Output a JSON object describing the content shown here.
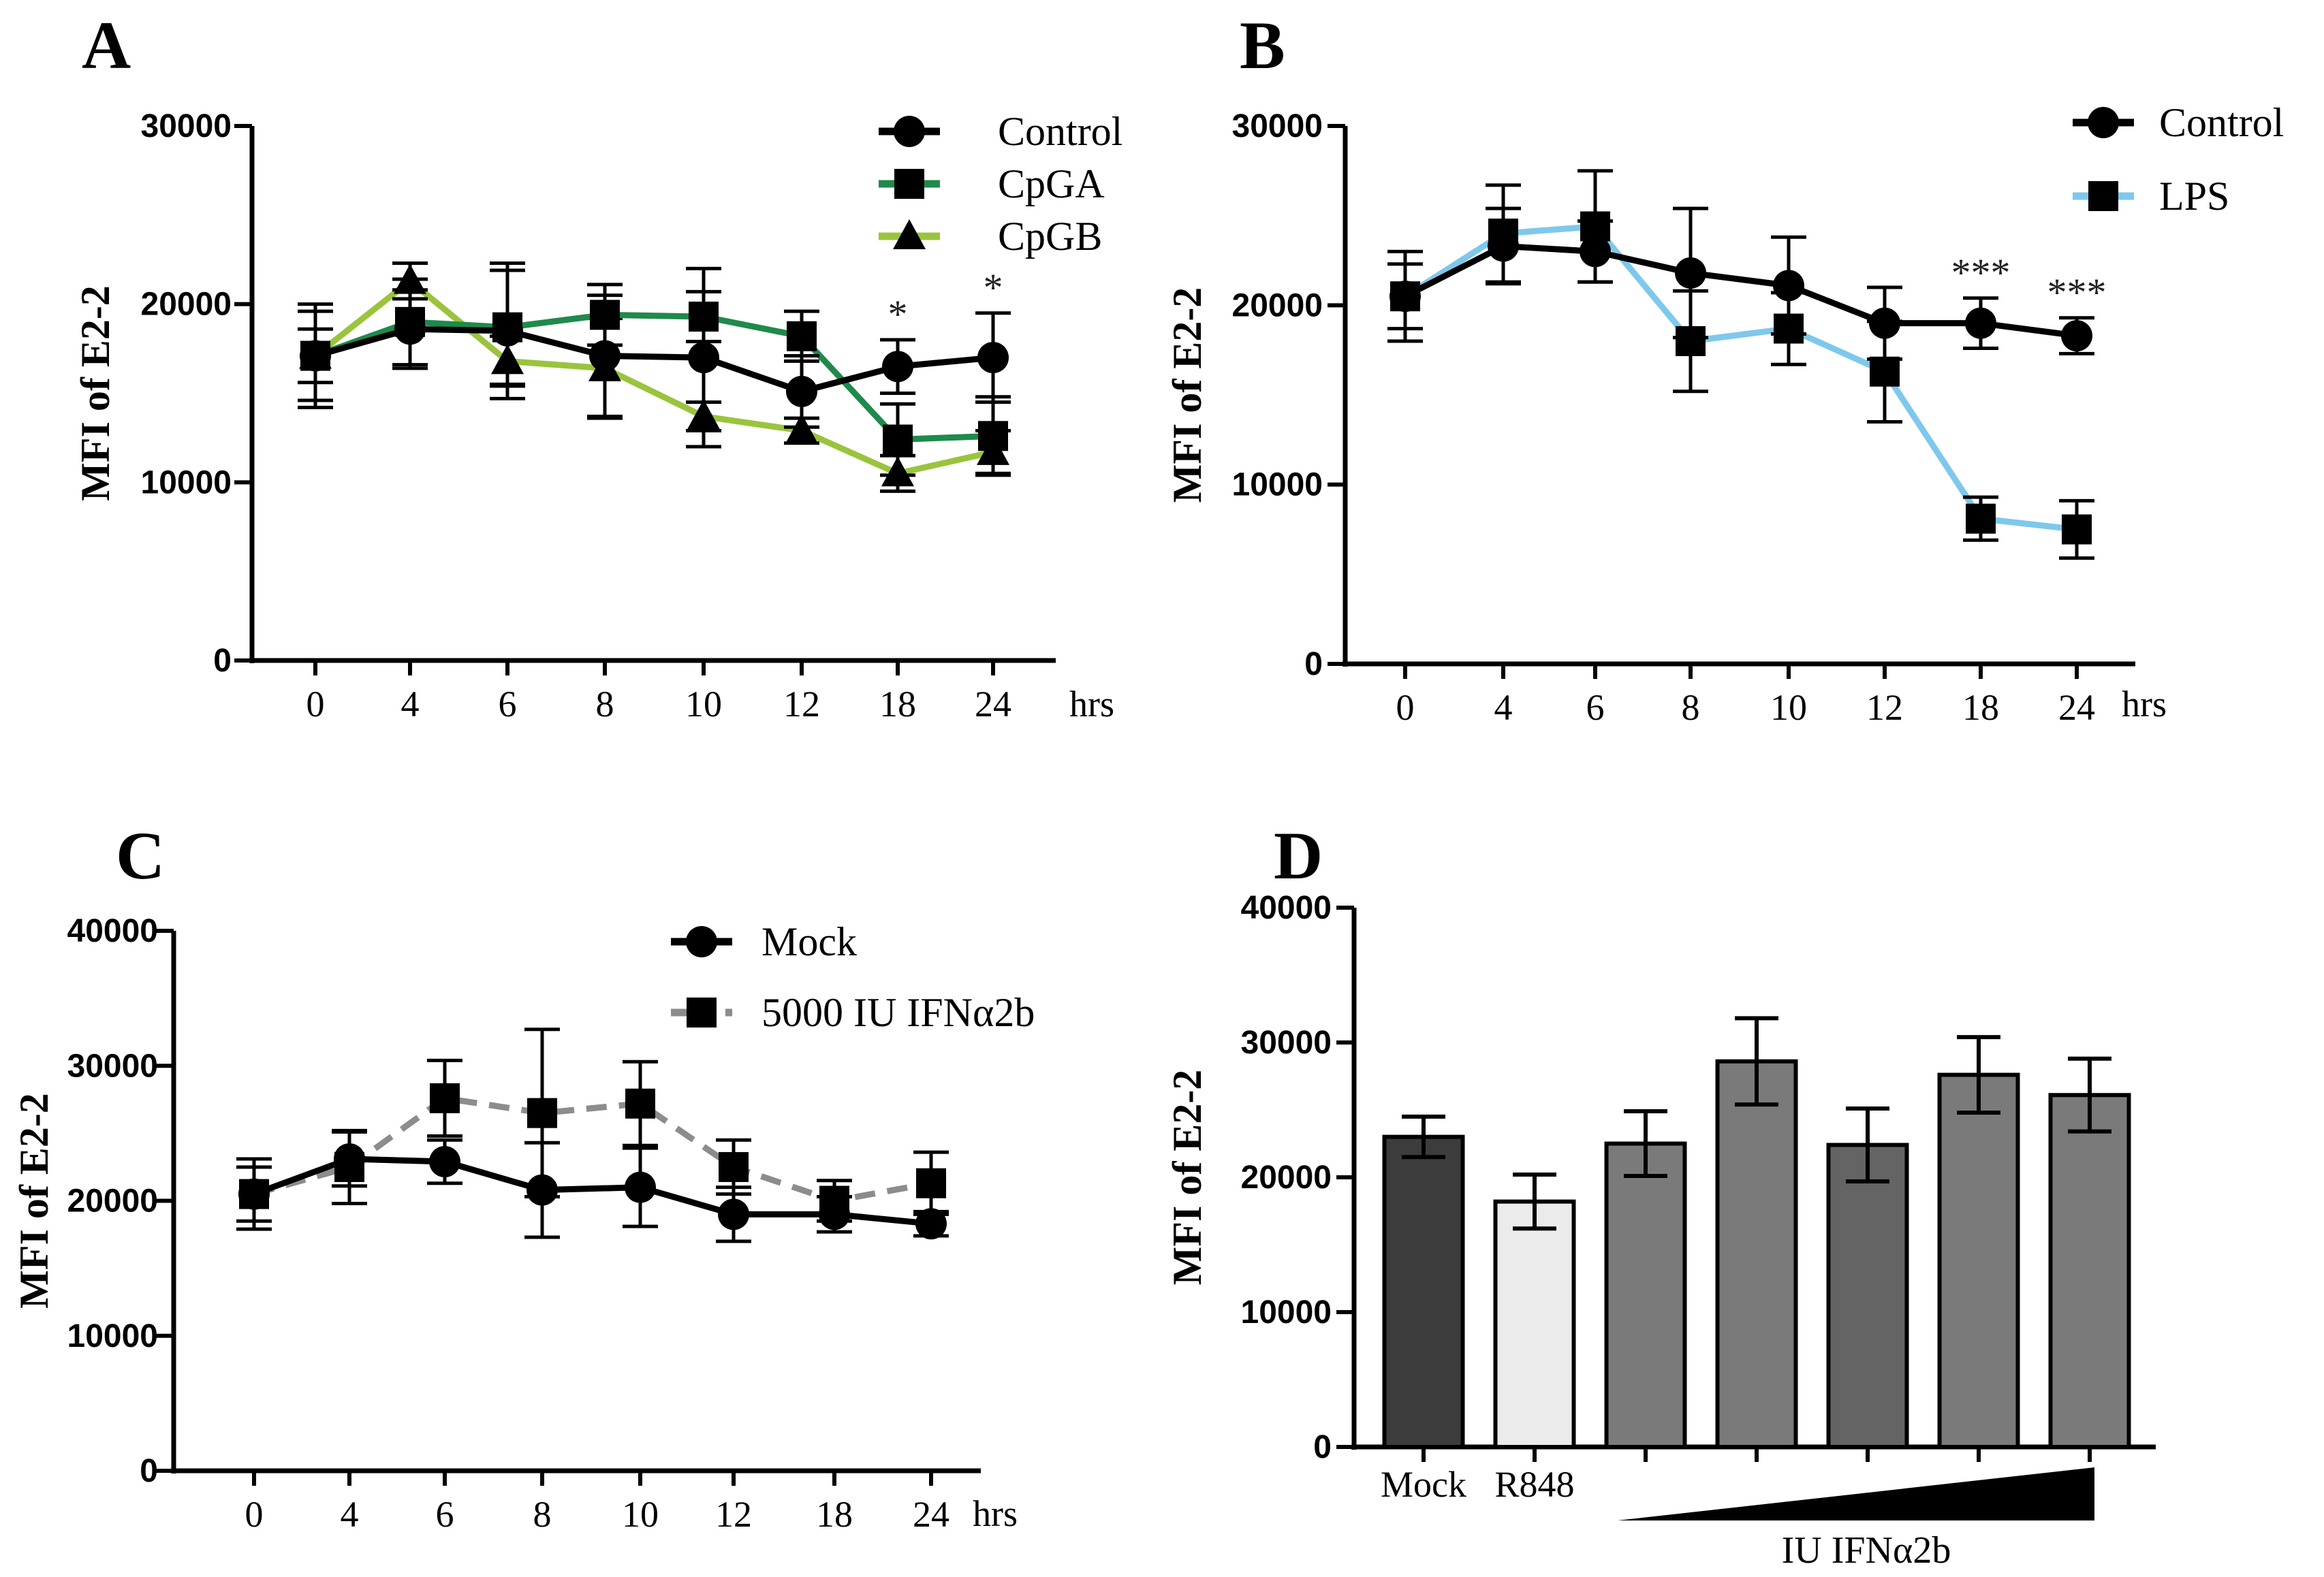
{
  "chart_data": [
    {
      "id": "A",
      "type": "line",
      "panel_label": "A",
      "ylabel": "MFI of E2-2",
      "x_unit": "hrs",
      "categories": [
        "0",
        "4",
        "6",
        "8",
        "10",
        "12",
        "18",
        "24"
      ],
      "ylim": [
        0,
        30000
      ],
      "yticks": [
        "0",
        "10000",
        "20000",
        "30000"
      ],
      "series": [
        {
          "name": "Control",
          "color": "#000000",
          "marker": "circle",
          "dash": false,
          "values": [
            17100,
            18600,
            18500,
            17100,
            17000,
            15100,
            16500,
            17000
          ],
          "errors": [
            2900,
            2200,
            3800,
            3400,
            5000,
            2000,
            1500,
            2500
          ]
        },
        {
          "name": "CpGA",
          "color": "#1f8a4b",
          "marker": "square",
          "dash": false,
          "values": [
            17100,
            19000,
            18700,
            19400,
            19300,
            18200,
            12400,
            12600
          ],
          "errors": [
            2500,
            2400,
            3200,
            1700,
            1400,
            1400,
            2000,
            2200
          ]
        },
        {
          "name": "CpGB",
          "color": "#9ac43d",
          "marker": "triangle",
          "dash": false,
          "values": [
            17100,
            21300,
            16800,
            16400,
            13700,
            12900,
            10500,
            11700
          ],
          "errors": [
            1500,
            1000,
            1400,
            2800,
            800,
            700,
            1000,
            1200
          ]
        }
      ],
      "annotations": [
        {
          "x": "18",
          "text": "*"
        },
        {
          "x": "24",
          "text": "*"
        }
      ]
    },
    {
      "id": "B",
      "type": "line",
      "panel_label": "B",
      "ylabel": "MFI of E2-2",
      "x_unit": "hrs",
      "categories": [
        "0",
        "4",
        "6",
        "8",
        "10",
        "12",
        "18",
        "24"
      ],
      "ylim": [
        0,
        30000
      ],
      "yticks": [
        "0",
        "10000",
        "20000",
        "30000"
      ],
      "series": [
        {
          "name": "Control",
          "color": "#000000",
          "marker": "circle",
          "dash": false,
          "values": [
            20500,
            23300,
            23000,
            21800,
            21100,
            19000,
            19000,
            18300
          ],
          "errors": [
            2500,
            2100,
            1700,
            3600,
            2700,
            2000,
            1400,
            1000
          ]
        },
        {
          "name": "LPS",
          "color": "#7ec8ec",
          "marker": "square",
          "dash": false,
          "values": [
            20500,
            24000,
            24400,
            18000,
            18700,
            16300,
            8100,
            7500
          ],
          "errors": [
            1800,
            2700,
            3100,
            2800,
            2000,
            2800,
            1200,
            1600
          ]
        }
      ],
      "annotations": [
        {
          "x": "18",
          "text": "***"
        },
        {
          "x": "24",
          "text": "***"
        }
      ]
    },
    {
      "id": "C",
      "type": "line",
      "panel_label": "C",
      "ylabel": "MFI of E2-2",
      "x_unit": "hrs",
      "categories": [
        "0",
        "4",
        "6",
        "8",
        "10",
        "12",
        "18",
        "24"
      ],
      "ylim": [
        0,
        40000
      ],
      "yticks": [
        "0",
        "10000",
        "20000",
        "30000",
        "40000"
      ],
      "series": [
        {
          "name": "Mock",
          "color": "#000000",
          "marker": "circle",
          "dash": false,
          "values": [
            20500,
            23100,
            22900,
            20800,
            21000,
            19000,
            19000,
            18300
          ],
          "errors": [
            2600,
            2000,
            1600,
            3500,
            2900,
            2000,
            1300,
            900
          ]
        },
        {
          "name": "5000 IU IFNα2b",
          "color": "#8c8c8c",
          "marker": "square",
          "dash": true,
          "values": [
            20500,
            22500,
            27600,
            26500,
            27200,
            22500,
            20000,
            21300
          ],
          "errors": [
            2000,
            2700,
            2800,
            6200,
            3100,
            2000,
            1500,
            2300
          ]
        }
      ],
      "annotations": []
    },
    {
      "id": "D",
      "type": "bar",
      "panel_label": "D",
      "ylabel": "MFI of E2-2",
      "ylim": [
        0,
        40000
      ],
      "yticks": [
        "0",
        "10000",
        "20000",
        "30000",
        "40000"
      ],
      "categories": [
        "Mock",
        "R848",
        "",
        "",
        "",
        "",
        ""
      ],
      "values": [
        23000,
        18200,
        22500,
        28600,
        22400,
        27600,
        26100
      ],
      "errors": [
        1500,
        2000,
        2400,
        3200,
        2700,
        2800,
        2700
      ],
      "colors": [
        "#3c3c3c",
        "#ebebeb",
        "#7a7a7a",
        "#7a7a7a",
        "#646464",
        "#7a7a7a",
        "#7a7a7a"
      ],
      "gradient_label": "IU IFNα2b"
    }
  ]
}
